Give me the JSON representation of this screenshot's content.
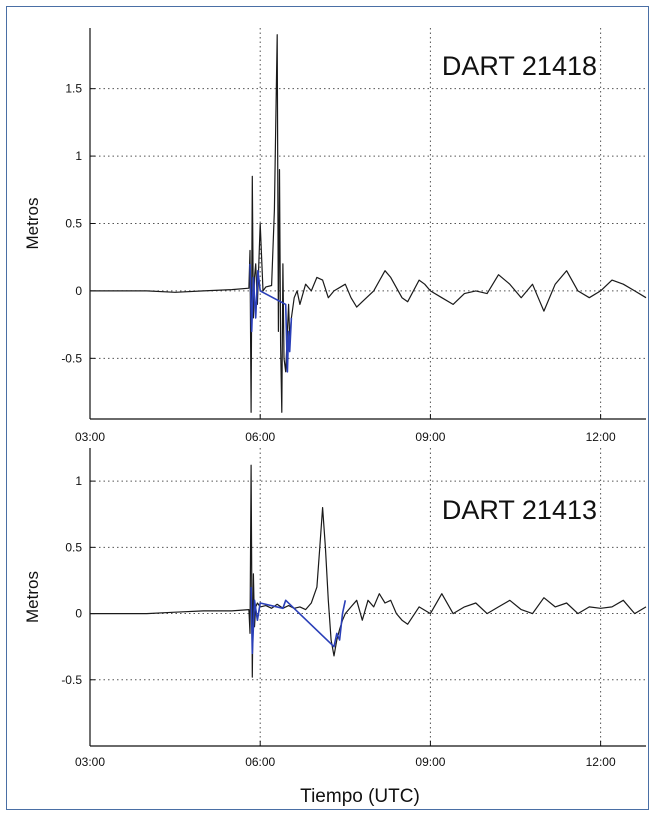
{
  "colors": {
    "frame": "#4a6fa5",
    "trace": "#1a1a1a",
    "highlight": "#2a3fb8",
    "grid": "#555555"
  },
  "xlabel": "Tiempo (UTC)",
  "chart_data": [
    {
      "type": "line",
      "title": "DART 21418",
      "ylabel": "Metros",
      "xlim": [
        3.0,
        12.8
      ],
      "ylim": [
        -0.95,
        1.95
      ],
      "x_ticks": [
        3,
        6,
        9,
        12
      ],
      "x_tick_labels": [
        "03:00",
        "06:00",
        "09:00",
        "12:00"
      ],
      "y_ticks": [
        -0.5,
        0,
        0.5,
        1,
        1.5
      ],
      "y_tick_labels": [
        "-0.5",
        "0",
        "0.5",
        "1",
        "1.5"
      ],
      "grid": true,
      "series": [
        {
          "color": "#1a1a1a",
          "x": [
            3.0,
            3.5,
            4.0,
            4.5,
            5.0,
            5.5,
            5.8,
            5.82,
            5.84,
            5.86,
            5.88,
            5.9,
            5.92,
            5.95,
            6.0,
            6.05,
            6.1,
            6.2,
            6.25,
            6.28,
            6.3,
            6.32,
            6.34,
            6.36,
            6.38,
            6.4,
            6.42,
            6.45,
            6.48,
            6.5,
            6.52,
            6.55,
            6.6,
            6.65,
            6.7,
            6.8,
            6.9,
            7.0,
            7.1,
            7.2,
            7.3,
            7.5,
            7.6,
            7.7,
            7.8,
            8.0,
            8.2,
            8.3,
            8.5,
            8.6,
            8.8,
            8.9,
            9.0,
            9.2,
            9.4,
            9.6,
            9.8,
            10.0,
            10.2,
            10.4,
            10.6,
            10.8,
            10.9,
            11.0,
            11.2,
            11.4,
            11.6,
            11.8,
            12.0,
            12.2,
            12.4,
            12.6,
            12.8
          ],
          "y": [
            0.0,
            0.0,
            0.0,
            -0.01,
            0.0,
            0.01,
            0.02,
            0.3,
            -0.9,
            0.85,
            -0.2,
            0.1,
            0.2,
            -0.1,
            0.5,
            0.0,
            0.03,
            0.04,
            0.6,
            1.4,
            1.9,
            -0.3,
            0.9,
            -0.4,
            -0.9,
            0.2,
            -0.5,
            -0.6,
            -0.3,
            -0.1,
            -0.35,
            -0.2,
            -0.05,
            0.0,
            -0.1,
            0.05,
            0.0,
            0.1,
            0.08,
            -0.05,
            0.0,
            0.05,
            -0.05,
            -0.12,
            -0.08,
            0.0,
            0.15,
            0.1,
            -0.05,
            -0.08,
            0.08,
            0.05,
            0.0,
            -0.05,
            -0.1,
            -0.02,
            0.0,
            -0.02,
            0.12,
            0.05,
            -0.05,
            0.05,
            -0.05,
            -0.15,
            0.05,
            0.15,
            0.0,
            -0.05,
            0.0,
            0.08,
            0.05,
            0.0,
            -0.05
          ]
        },
        {
          "color": "#2a3fb8",
          "x": [
            5.82,
            5.85,
            5.88,
            5.92,
            5.96,
            6.0,
            6.45,
            6.48,
            6.5,
            6.52,
            6.55
          ],
          "y": [
            0.2,
            -0.3,
            0.1,
            -0.2,
            0.15,
            0.0,
            -0.1,
            -0.6,
            -0.3,
            -0.45,
            -0.2
          ]
        }
      ]
    },
    {
      "type": "line",
      "title": "DART 21413",
      "ylabel": "Metros",
      "xlim": [
        3.0,
        12.8
      ],
      "ylim": [
        -1.0,
        1.25
      ],
      "x_ticks": [
        3,
        6,
        9,
        12
      ],
      "x_tick_labels": [
        "03:00",
        "06:00",
        "09:00",
        "12:00"
      ],
      "y_ticks": [
        -0.5,
        0,
        0.5,
        1
      ],
      "y_tick_labels": [
        "-0.5",
        "0",
        "0.5",
        "1"
      ],
      "grid": true,
      "series": [
        {
          "color": "#1a1a1a",
          "x": [
            3.0,
            3.5,
            4.0,
            4.5,
            5.0,
            5.5,
            5.8,
            5.82,
            5.84,
            5.86,
            5.88,
            5.9,
            5.92,
            5.95,
            6.0,
            6.1,
            6.2,
            6.3,
            6.4,
            6.5,
            6.6,
            6.7,
            6.8,
            6.9,
            7.0,
            7.05,
            7.1,
            7.15,
            7.2,
            7.25,
            7.3,
            7.35,
            7.4,
            7.45,
            7.5,
            7.6,
            7.7,
            7.8,
            7.9,
            8.0,
            8.1,
            8.2,
            8.3,
            8.4,
            8.5,
            8.6,
            8.8,
            9.0,
            9.2,
            9.4,
            9.6,
            9.8,
            10.0,
            10.2,
            10.4,
            10.6,
            10.8,
            11.0,
            11.2,
            11.4,
            11.6,
            11.8,
            12.0,
            12.2,
            12.4,
            12.6,
            12.8
          ],
          "y": [
            0.0,
            0.0,
            0.0,
            0.01,
            0.02,
            0.02,
            0.03,
            -0.15,
            1.12,
            -0.48,
            0.3,
            -0.1,
            0.05,
            0.08,
            0.05,
            0.06,
            0.04,
            0.07,
            0.04,
            0.06,
            0.04,
            0.05,
            0.03,
            0.08,
            0.2,
            0.5,
            0.8,
            0.5,
            0.1,
            -0.2,
            -0.32,
            -0.2,
            -0.12,
            -0.05,
            0.0,
            0.05,
            0.1,
            -0.05,
            0.1,
            0.05,
            0.15,
            0.08,
            0.1,
            0.0,
            -0.05,
            -0.08,
            0.05,
            0.0,
            0.15,
            0.0,
            0.05,
            0.08,
            0.0,
            0.05,
            0.1,
            0.03,
            0.0,
            0.12,
            0.05,
            0.08,
            0.0,
            0.05,
            0.04,
            0.05,
            0.1,
            0.0,
            0.05
          ]
        },
        {
          "color": "#2a3fb8",
          "x": [
            5.84,
            5.86,
            5.9,
            5.95,
            6.0,
            6.4,
            6.45,
            7.3,
            7.35,
            7.4,
            7.45,
            7.5
          ],
          "y": [
            0.2,
            -0.3,
            0.1,
            -0.05,
            0.08,
            0.04,
            0.1,
            -0.25,
            -0.15,
            -0.2,
            0.0,
            0.1
          ]
        }
      ]
    }
  ]
}
